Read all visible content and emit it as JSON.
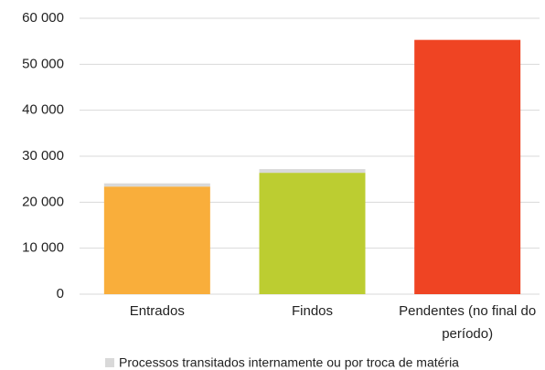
{
  "chart_data": {
    "type": "stacked_bar",
    "categories": [
      "Entrados",
      "Findos",
      "Pendentes (no final do período)"
    ],
    "series": [
      {
        "colors": [
          "#f9ae3b",
          "#bccd31",
          "#ef4423"
        ],
        "values": [
          23400,
          26400,
          55300
        ]
      },
      {
        "name": "Processos transitados internamente ou por troca de matéria",
        "color": "#d9d9d9",
        "values": [
          700,
          800,
          0
        ]
      }
    ],
    "ylim": [
      0,
      60000
    ],
    "yticks": [
      0,
      {
        "value": 10000,
        "label": "10 000"
      },
      {
        "value": 20000,
        "label": "20 000"
      },
      {
        "value": 30000,
        "label": "30 000"
      },
      {
        "value": 40000,
        "label": "40 000"
      },
      {
        "value": 50000,
        "label": "50 000"
      },
      {
        "value": 60000,
        "label": "60 000"
      }
    ],
    "grid": true
  }
}
